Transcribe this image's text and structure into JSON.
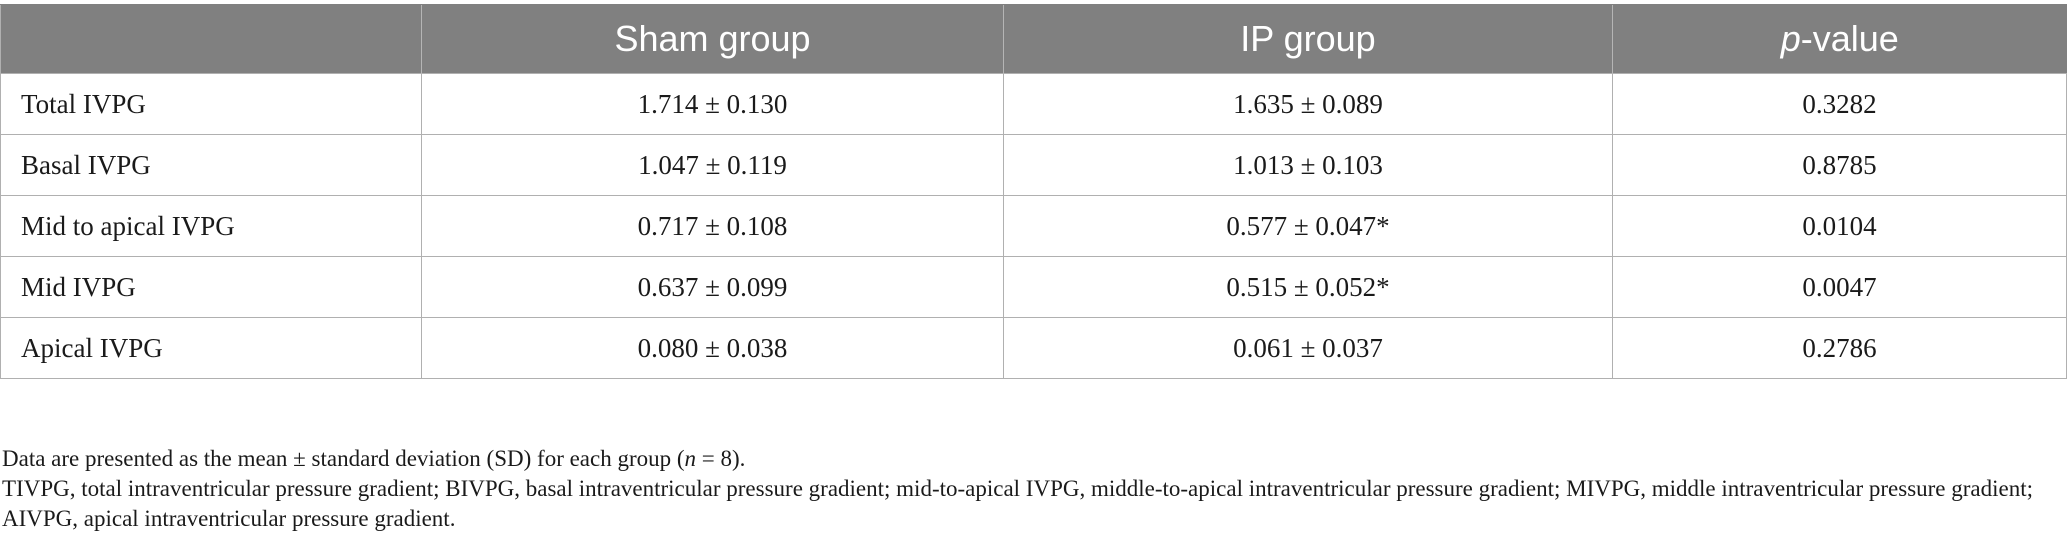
{
  "table": {
    "headers": [
      "",
      "Sham group",
      "IP group",
      "p-value"
    ],
    "header_pvalue": {
      "italic": "p",
      "rest": "-value"
    },
    "rows": [
      {
        "label": "Total IVPG",
        "sham": "1.714 ± 0.130",
        "ip": "1.635 ± 0.089",
        "p": "0.3282"
      },
      {
        "label": "Basal IVPG",
        "sham": "1.047 ± 0.119",
        "ip": "1.013 ± 0.103",
        "p": "0.8785"
      },
      {
        "label": "Mid to apical IVPG",
        "sham": "0.717 ± 0.108",
        "ip": "0.577 ± 0.047*",
        "p": "0.0104"
      },
      {
        "label": "Mid IVPG",
        "sham": "0.637 ± 0.099",
        "ip": "0.515 ± 0.052*",
        "p": "0.0047"
      },
      {
        "label": "Apical IVPG",
        "sham": "0.080 ± 0.038",
        "ip": "0.061 ± 0.037",
        "p": "0.2786"
      }
    ]
  },
  "footnotes": {
    "line1_pre": "Data are presented as the mean ± standard deviation (SD) for each group (",
    "line1_n": "n",
    "line1_post": " = 8).",
    "line2": "TIVPG, total intraventricular pressure gradient; BIVPG, basal intraventricular pressure gradient; mid-to-apical IVPG, middle-to-apical intraventricular pressure gradient; MIVPG, middle intraventricular pressure gradient; AIVPG, apical intraventricular pressure gradient."
  },
  "colors": {
    "header_bg": "#808080",
    "header_text": "#ffffff",
    "grid": "#b0b0b0"
  }
}
